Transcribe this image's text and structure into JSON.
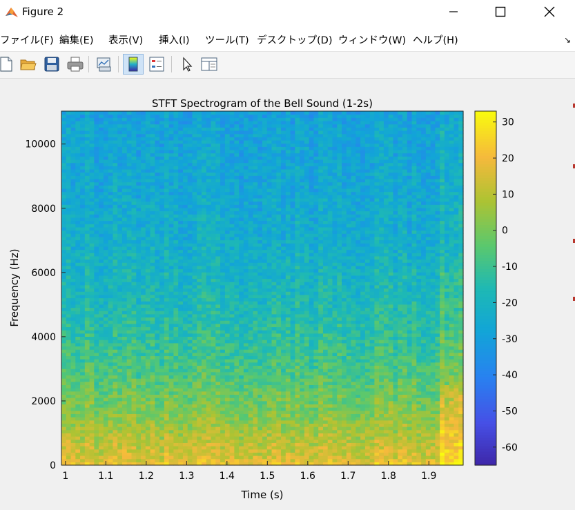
{
  "window": {
    "title": "Figure 2",
    "controls": {
      "minimize": "minimize",
      "maximize": "maximize",
      "close": "close"
    }
  },
  "menu": {
    "items": [
      "ファイル(F)",
      "編集(E)",
      "表示(V)",
      "挿入(I)",
      "ツール(T)",
      "デスクトップ(D)",
      "ウィンドウ(W)",
      "ヘルプ(H)"
    ],
    "overflow_arrow": "↘"
  },
  "toolbar": {
    "buttons": [
      {
        "icon": "new-figure-icon",
        "active": false
      },
      {
        "icon": "open-folder-icon",
        "active": false
      },
      {
        "icon": "save-disk-icon",
        "active": false
      },
      {
        "icon": "print-icon",
        "active": false
      },
      {
        "icon": "link-plot-icon",
        "active": false
      },
      {
        "icon": "colorbar-icon",
        "active": true
      },
      {
        "icon": "legend-icon",
        "active": false
      },
      {
        "icon": "edit-plot-cursor-icon",
        "active": false
      },
      {
        "icon": "property-inspector-icon",
        "active": false
      }
    ]
  },
  "colors": {
    "colormap": "parula",
    "window_bg": "#f0f0f0",
    "edge_marker": "#b8362d"
  },
  "chart_data": {
    "type": "heatmap",
    "title": "STFT Spectrogram of the Bell Sound (1-2s)",
    "xlabel": "Time (s)",
    "ylabel": "Frequency (Hz)",
    "xlim": [
      0.99,
      1.985
    ],
    "ylim": [
      0,
      11025
    ],
    "xticks": [
      1,
      1.1,
      1.2,
      1.3,
      1.4,
      1.5,
      1.6,
      1.7,
      1.8,
      1.9
    ],
    "xtick_labels": [
      "1",
      "1.1",
      "1.2",
      "1.3",
      "1.4",
      "1.5",
      "1.6",
      "1.7",
      "1.8",
      "1.9"
    ],
    "yticks": [
      0,
      2000,
      4000,
      6000,
      8000,
      10000
    ],
    "ytick_labels": [
      "0",
      "2000",
      "4000",
      "6000",
      "8000",
      "10000"
    ],
    "colorbar": {
      "clim": [
        -65,
        33
      ],
      "ticks": [
        30,
        20,
        10,
        0,
        -10,
        -20,
        -30,
        -40,
        -50,
        -60
      ],
      "tick_labels": [
        "30",
        "20",
        "10",
        "0",
        "-10",
        "-20",
        "-30",
        "-40",
        "-50",
        "-60"
      ]
    },
    "grid": false,
    "time_bins": 86,
    "freq_bins": 110,
    "power_profile_db": {
      "freq_hz": [
        0,
        200,
        500,
        1000,
        1500,
        2500,
        3500,
        5000,
        7000,
        9000,
        10500,
        11025
      ],
      "level_db": [
        22,
        15,
        13,
        8,
        3,
        -4,
        -10,
        -17,
        -23,
        -26,
        -27,
        -30
      ]
    },
    "onset": {
      "time_s": 1.93,
      "level_db": 28
    }
  }
}
